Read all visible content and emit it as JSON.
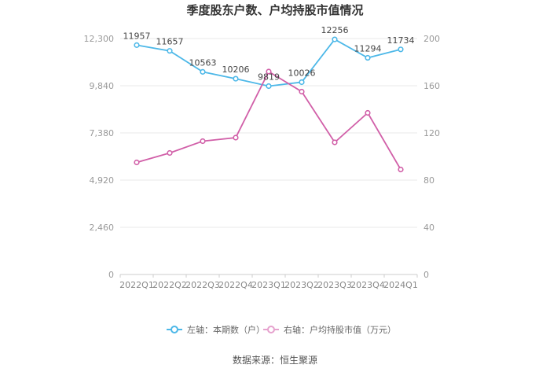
{
  "chart_data": {
    "type": "line",
    "title": "季度股东户数、户均持股市值情况",
    "categories": [
      "2022Q1",
      "2022Q2",
      "2022Q3",
      "2022Q4",
      "2023Q1",
      "2023Q2",
      "2023Q3",
      "2023Q4",
      "2024Q1"
    ],
    "series": [
      {
        "name": "左轴：本期数（户）",
        "axis": "left",
        "color": "#4db8e8",
        "values": [
          11957,
          11657,
          10563,
          10206,
          9819,
          10026,
          12256,
          11294,
          11734
        ],
        "labels": [
          "11957",
          "11657",
          "10563",
          "10206",
          "9819",
          "10026",
          "12256",
          "11294",
          "11734"
        ]
      },
      {
        "name": "右轴：户均持股市值（万元）",
        "axis": "right",
        "color": "#d15fa8",
        "values": [
          95,
          103,
          113,
          116,
          172,
          155,
          112,
          137,
          89
        ]
      }
    ],
    "left_axis": {
      "min": 0,
      "max": 12300,
      "ticks": [
        "0",
        "2,460",
        "4,920",
        "7,380",
        "9,840",
        "12,300"
      ],
      "tick_values": [
        0,
        2460,
        4920,
        7380,
        9840,
        12300
      ]
    },
    "right_axis": {
      "min": 0,
      "max": 200,
      "ticks": [
        "0",
        "40",
        "80",
        "120",
        "160",
        "200"
      ],
      "tick_values": [
        0,
        40,
        80,
        120,
        160,
        200
      ]
    },
    "grid": true,
    "legend_position": "bottom"
  },
  "source_text": "数据来源：恒生聚源"
}
